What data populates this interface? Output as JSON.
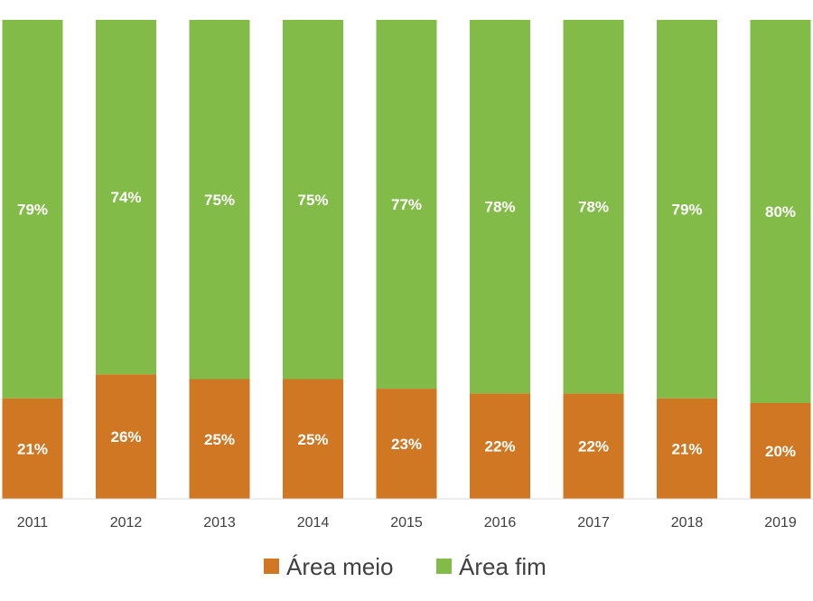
{
  "chart_data": {
    "type": "bar",
    "stacked": true,
    "categories": [
      "2011",
      "2012",
      "2013",
      "2014",
      "2015",
      "2016",
      "2017",
      "2018",
      "2019"
    ],
    "series": [
      {
        "name": "Área meio",
        "color": "#CF7722",
        "values": [
          21,
          26,
          25,
          25,
          23,
          22,
          22,
          21,
          20
        ],
        "labels": [
          "21%",
          "26%",
          "25%",
          "25%",
          "23%",
          "22%",
          "22%",
          "21%",
          "20%"
        ]
      },
      {
        "name": "Área fim",
        "color": "#82BB47",
        "values": [
          79,
          74,
          75,
          75,
          77,
          78,
          78,
          79,
          80
        ],
        "labels": [
          "79%",
          "74%",
          "75%",
          "75%",
          "77%",
          "78%",
          "78%",
          "79%",
          "80%"
        ]
      }
    ],
    "ylim": [
      0,
      100
    ],
    "grid": false,
    "legend_position": "bottom",
    "title": "",
    "xlabel": "",
    "ylabel": ""
  }
}
